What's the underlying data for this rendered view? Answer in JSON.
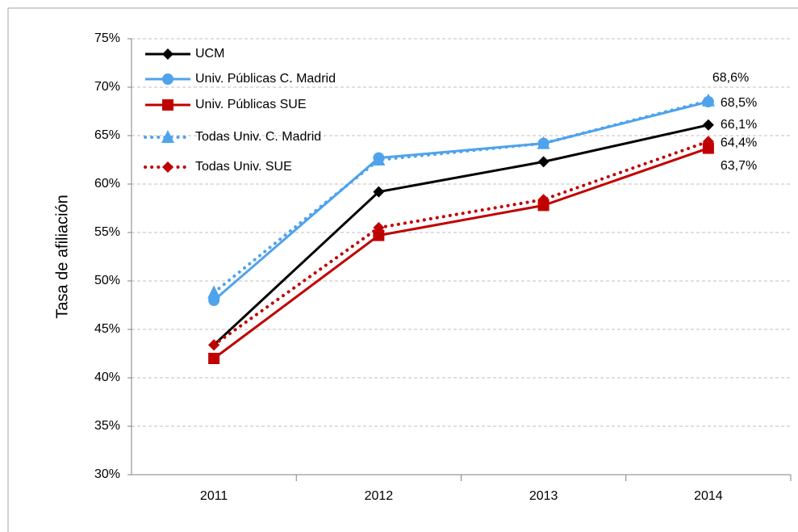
{
  "chart_data": {
    "type": "line",
    "ylabel": "Tasa de afiliación",
    "categories": [
      "2011",
      "2012",
      "2013",
      "2014"
    ],
    "ylim": [
      30,
      75
    ],
    "yticks": [
      {
        "value": 30,
        "label": "30%"
      },
      {
        "value": 35,
        "label": "35%"
      },
      {
        "value": 40,
        "label": "40%"
      },
      {
        "value": 45,
        "label": "45%"
      },
      {
        "value": 50,
        "label": "50%"
      },
      {
        "value": 55,
        "label": "55%"
      },
      {
        "value": 60,
        "label": "60%"
      },
      {
        "value": 65,
        "label": "65%"
      },
      {
        "value": 70,
        "label": "70%"
      },
      {
        "value": 75,
        "label": "75%"
      }
    ],
    "grid": true,
    "legend": "upper left",
    "series": [
      {
        "name": "UCM",
        "color": "#000000",
        "marker": "diamond",
        "linestyle": "solid",
        "values": [
          43.4,
          59.2,
          62.3,
          66.1
        ],
        "value_labels": [
          null,
          null,
          null,
          "66,1%"
        ]
      },
      {
        "name": "Univ. Públicas C. Madrid",
        "color": "#4fa3ec",
        "marker": "circle",
        "linestyle": "solid",
        "values": [
          48.0,
          62.7,
          64.2,
          68.5
        ],
        "value_labels": [
          null,
          null,
          null,
          "68,5%"
        ]
      },
      {
        "name": "Univ. Públicas SUE",
        "color": "#c00000",
        "marker": "square",
        "linestyle": "solid",
        "values": [
          42.0,
          54.7,
          57.8,
          63.7
        ],
        "value_labels": [
          null,
          null,
          null,
          "63,7%"
        ]
      },
      {
        "name": "Todas Univ. C. Madrid",
        "color": "#4fa3ec",
        "marker": "triangle",
        "linestyle": "dotted",
        "values": [
          48.8,
          62.5,
          64.2,
          68.6
        ],
        "value_labels": [
          null,
          null,
          null,
          "68,6%"
        ]
      },
      {
        "name": "Todas Univ. SUE",
        "color": "#c00000",
        "marker": "diamond",
        "linestyle": "dotted",
        "values": [
          43.4,
          55.5,
          58.4,
          64.4
        ],
        "value_labels": [
          null,
          null,
          null,
          "64,4%"
        ]
      }
    ]
  }
}
